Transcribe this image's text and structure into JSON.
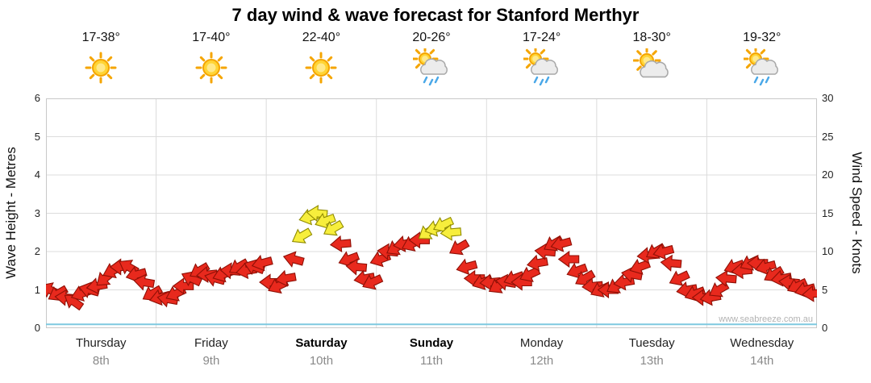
{
  "title": "7 day wind & wave forecast for Stanford Merthyr",
  "watermark": "www.seabreeze.com.au",
  "forecast": [
    {
      "temp": "17-38°",
      "icon": "sunny"
    },
    {
      "temp": "17-40°",
      "icon": "sunny"
    },
    {
      "temp": "22-40°",
      "icon": "sunny"
    },
    {
      "temp": "20-26°",
      "icon": "sun-showers"
    },
    {
      "temp": "17-24°",
      "icon": "sun-showers"
    },
    {
      "temp": "18-30°",
      "icon": "sun-cloud"
    },
    {
      "temp": "19-32°",
      "icon": "sun-showers"
    }
  ],
  "chart_data": {
    "type": "line",
    "title": "7 day wind & wave forecast for Stanford Merthyr",
    "left_axis": {
      "label": "Wave Height - Metres",
      "range": [
        0,
        6
      ],
      "ticks": [
        "0",
        "1",
        "2",
        "3",
        "4",
        "5",
        "6"
      ]
    },
    "right_axis": {
      "label": "Wind Speed - Knots",
      "range": [
        0,
        30
      ],
      "ticks": [
        "0",
        "5",
        "10",
        "15",
        "20",
        "25",
        "30"
      ]
    },
    "grid": "on",
    "days": [
      {
        "name": "Thursday",
        "date": "8th",
        "weekend": false
      },
      {
        "name": "Friday",
        "date": "9th",
        "weekend": false
      },
      {
        "name": "Saturday",
        "date": "10th",
        "weekend": true
      },
      {
        "name": "Sunday",
        "date": "11th",
        "weekend": true
      },
      {
        "name": "Monday",
        "date": "12th",
        "weekend": false
      },
      {
        "name": "Tuesday",
        "date": "13th",
        "weekend": false
      },
      {
        "name": "Wednesday",
        "date": "14th",
        "weekend": false
      }
    ],
    "series": [
      {
        "name": "Wind Speed",
        "units": "knots",
        "axis": "right",
        "marker": "direction-arrow",
        "values_by_day": [
          [
            5,
            4.5,
            4,
            3.5,
            4.5,
            5,
            5.5,
            6.5,
            7.5,
            8,
            8,
            7,
            6,
            4.5
          ],
          [
            4,
            3.8,
            4.5,
            5.5,
            6.5,
            7.5,
            7,
            6.5,
            7,
            7.5,
            8,
            7.5,
            8,
            8.5
          ],
          [
            6,
            5.5,
            6.5,
            9,
            12,
            14.5,
            15,
            14,
            13,
            11,
            9,
            8,
            6.5,
            6
          ],
          [
            9,
            10,
            10.5,
            11,
            11,
            11.5,
            12.5,
            13,
            13.5,
            12.5,
            10.5,
            8,
            6.5,
            6
          ],
          [
            6,
            5.5,
            6,
            6.5,
            6,
            7,
            8.5,
            10,
            11,
            11,
            9,
            7.5,
            6.5,
            5.5
          ],
          [
            5,
            5,
            5.5,
            6,
            7,
            8,
            9.5,
            10,
            10,
            8.5,
            6.5,
            5,
            4.5,
            4
          ],
          [
            4,
            5,
            6.5,
            8,
            7.5,
            8.5,
            8.5,
            8,
            7,
            6.5,
            6,
            5.5,
            5,
            4.5
          ]
        ],
        "dirs_by_day": [
          [
            205,
            150,
            185,
            215,
            160,
            195,
            170,
            140,
            155,
            180,
            210,
            165,
            190,
            150
          ],
          [
            165,
            190,
            155,
            180,
            205,
            150,
            175,
            195,
            160,
            185,
            150,
            170,
            200,
            165
          ],
          [
            180,
            155,
            170,
            195,
            150,
            165,
            185,
            160,
            150,
            175,
            160,
            185,
            170,
            155
          ],
          [
            160,
            185,
            150,
            170,
            155,
            180,
            145,
            165,
            155,
            175,
            150,
            165,
            180,
            160
          ],
          [
            175,
            150,
            190,
            160,
            180,
            155,
            170,
            185,
            150,
            165,
            180,
            160,
            150,
            175
          ],
          [
            155,
            180,
            150,
            170,
            190,
            160,
            175,
            150,
            165,
            185,
            155,
            170,
            160,
            180
          ],
          [
            170,
            150,
            185,
            160,
            175,
            155,
            180,
            165,
            150,
            170,
            185,
            155,
            165,
            175
          ]
        ]
      },
      {
        "name": "Wave Height",
        "units": "metres",
        "axis": "left",
        "marker": "line",
        "flat_value": 0.1
      }
    ],
    "colors": {
      "low_wind_fill": "#e8291d",
      "low_wind_stroke": "#8f1006",
      "high_wind_fill": "#f7ee3c",
      "high_wind_stroke": "#8f8a00",
      "wave_line": "#7ec9e0",
      "grid": "#dcdcdc",
      "frame": "#c8c8c8"
    },
    "high_wind_threshold_knots": 12
  }
}
